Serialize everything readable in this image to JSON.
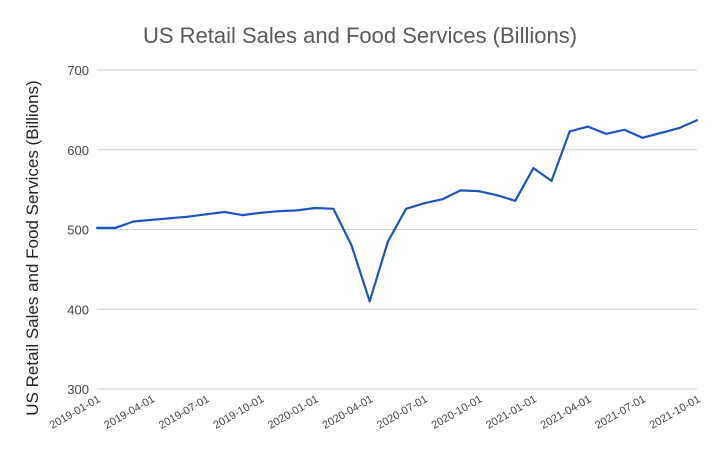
{
  "chart_data": {
    "type": "line",
    "title": "US Retail Sales and Food Services (Billions)",
    "xlabel": "",
    "ylabel": "US Retail Sales and Food Services (Billions)",
    "ylim": [
      300,
      700
    ],
    "yticks": [
      300,
      400,
      500,
      600,
      700
    ],
    "grid": true,
    "xtick_labels": [
      "2019-01-01",
      "2019-04-01",
      "2019-07-01",
      "2019-10-01",
      "2020-01-01",
      "2020-04-01",
      "2020-07-01",
      "2020-10-01",
      "2021-01-01",
      "2021-04-01",
      "2021-07-01",
      "2021-10-01"
    ],
    "x": [
      "2019-01-01",
      "2019-02-01",
      "2019-03-01",
      "2019-04-01",
      "2019-05-01",
      "2019-06-01",
      "2019-07-01",
      "2019-08-01",
      "2019-09-01",
      "2019-10-01",
      "2019-11-01",
      "2019-12-01",
      "2020-01-01",
      "2020-02-01",
      "2020-03-01",
      "2020-04-01",
      "2020-05-01",
      "2020-06-01",
      "2020-07-01",
      "2020-08-01",
      "2020-09-01",
      "2020-10-01",
      "2020-11-01",
      "2020-12-01",
      "2021-01-01",
      "2021-02-01",
      "2021-03-01",
      "2021-04-01",
      "2021-05-01",
      "2021-06-01",
      "2021-07-01",
      "2021-08-01",
      "2021-09-01",
      "2021-10-01"
    ],
    "series": [
      {
        "color": "#1a55c0",
        "values": [
          502,
          502,
          510,
          512,
          514,
          516,
          519,
          522,
          518,
          521,
          523,
          524,
          527,
          526,
          480,
          410,
          485,
          526,
          533,
          538,
          549,
          548,
          543,
          536,
          577,
          561,
          623,
          629,
          620,
          625,
          615,
          621,
          627,
          637
        ]
      }
    ]
  }
}
